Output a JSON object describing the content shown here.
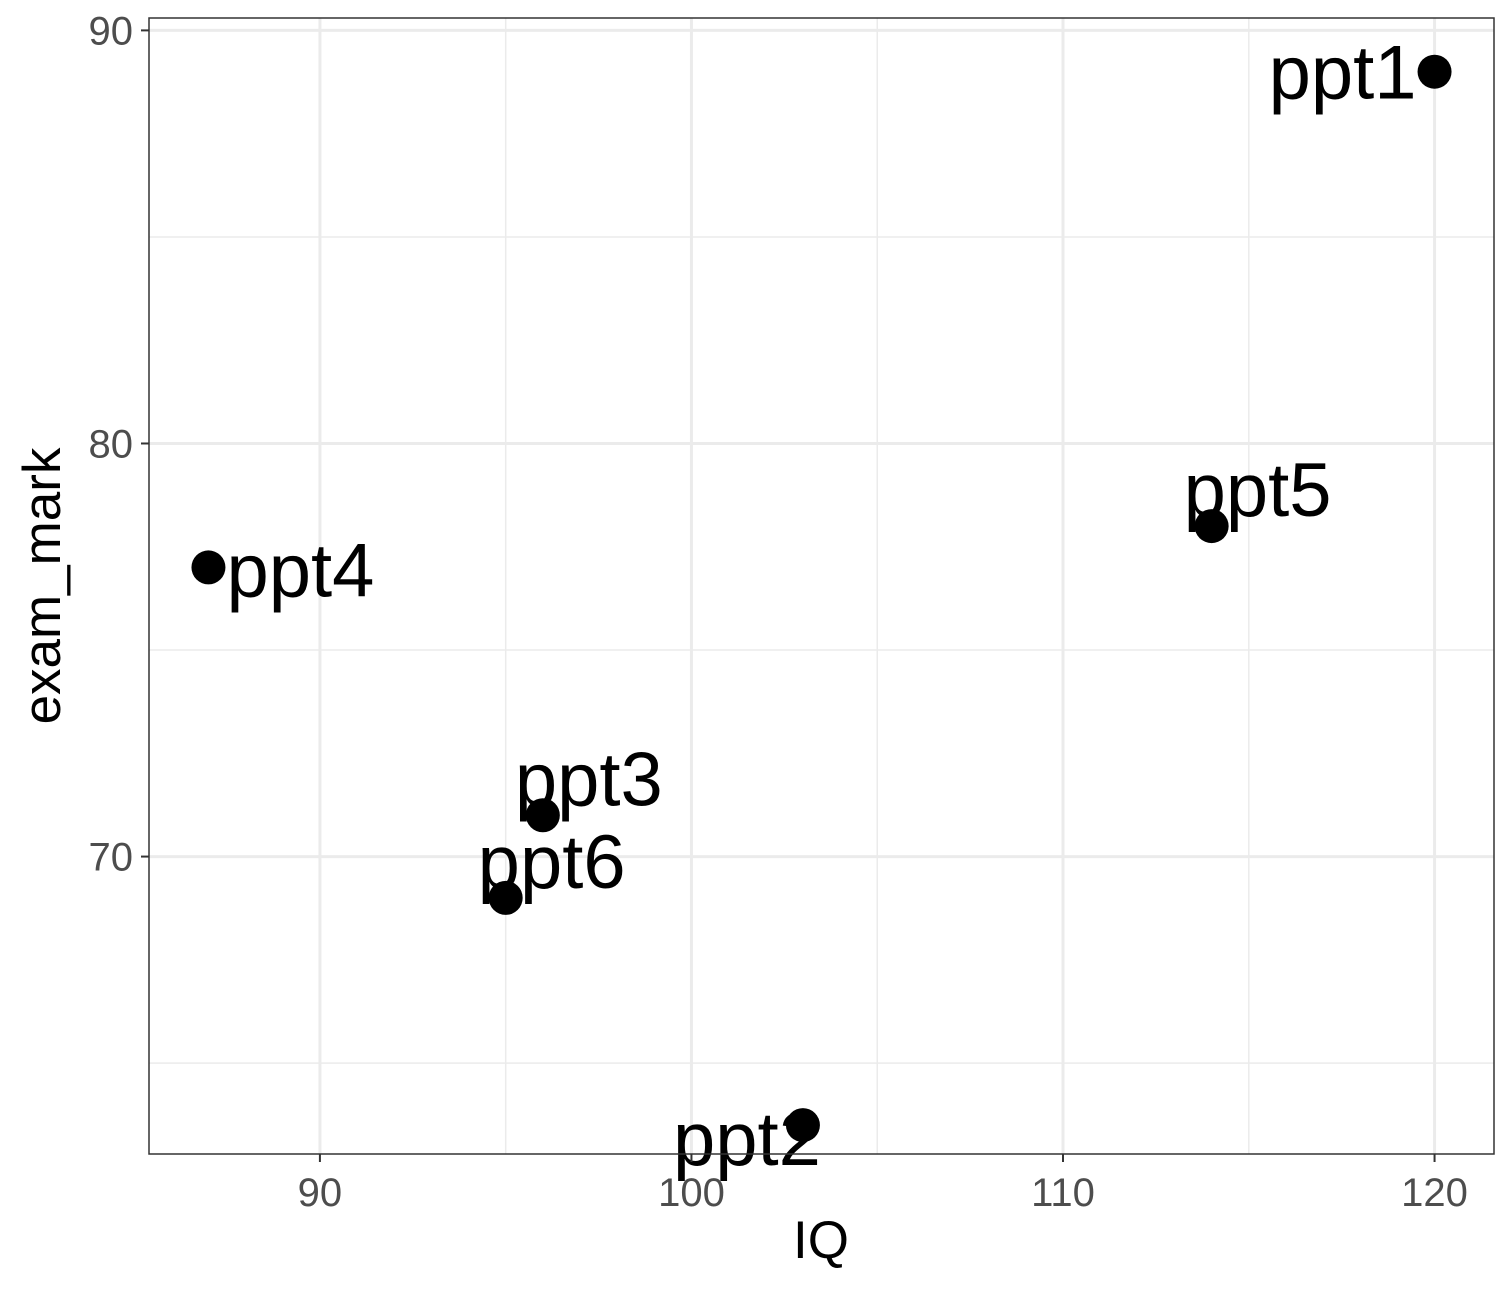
{
  "chart_data": {
    "type": "scatter",
    "title": "",
    "xlabel": "IQ",
    "ylabel": "exam_mark",
    "xlim": [
      85.4,
      121.6
    ],
    "ylim": [
      62.8,
      90.3
    ],
    "x_ticks": [
      90,
      100,
      110,
      120
    ],
    "y_ticks": [
      70,
      80,
      90
    ],
    "x_minor": [
      95,
      105,
      115
    ],
    "y_minor": [
      65,
      75,
      85
    ],
    "grid": true,
    "legend": "none",
    "point_color": "#000000",
    "points": [
      {
        "label": "ppt1",
        "x": 120,
        "y": 89,
        "label_side": "left"
      },
      {
        "label": "ppt2",
        "x": 103,
        "y": 63.5,
        "label_side": "bottom-left"
      },
      {
        "label": "ppt3",
        "x": 96,
        "y": 71,
        "label_side": "top-right"
      },
      {
        "label": "ppt4",
        "x": 87,
        "y": 77,
        "label_side": "right"
      },
      {
        "label": "ppt5",
        "x": 114,
        "y": 78,
        "label_side": "top-right"
      },
      {
        "label": "ppt6",
        "x": 95,
        "y": 69,
        "label_side": "top-right"
      }
    ]
  }
}
